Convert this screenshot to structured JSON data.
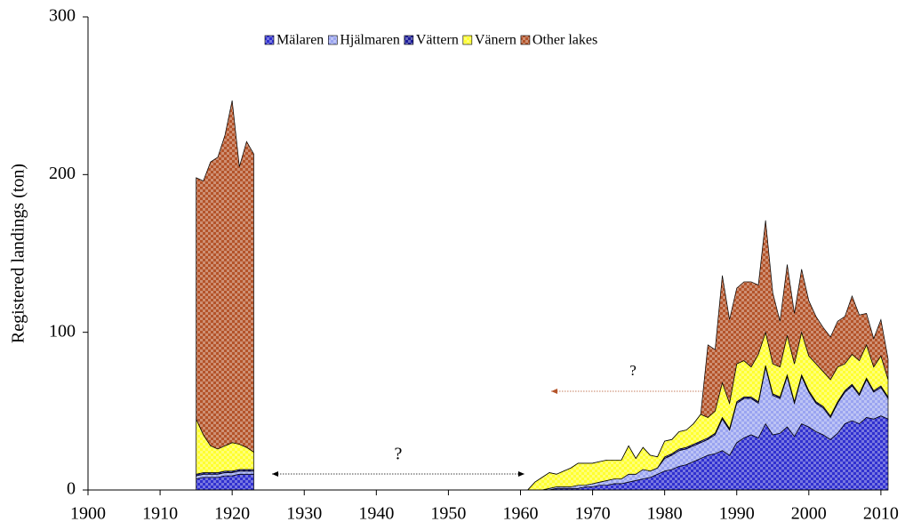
{
  "chart_data": {
    "type": "stacked_area",
    "y_label": "Registered landings (ton)",
    "x": [
      1915,
      1916,
      1917,
      1918,
      1919,
      1920,
      1921,
      1922,
      1923,
      1924,
      1961,
      1962,
      1963,
      1964,
      1965,
      1966,
      1967,
      1968,
      1969,
      1970,
      1971,
      1972,
      1973,
      1974,
      1975,
      1976,
      1977,
      1978,
      1979,
      1980,
      1981,
      1982,
      1983,
      1984,
      1985,
      1986,
      1987,
      1988,
      1989,
      1990,
      1991,
      1992,
      1993,
      1994,
      1995,
      1996,
      1997,
      1998,
      1999,
      2000,
      2001,
      2002,
      2003,
      2004,
      2005,
      2006,
      2007,
      2008,
      2009,
      2010,
      2011
    ],
    "series": [
      {
        "name": "Mälaren",
        "color": "#3030d0",
        "values": [
          7,
          8,
          8,
          8,
          9,
          9,
          10,
          10,
          10,
          null,
          0,
          0,
          0,
          0,
          1,
          1,
          1,
          1,
          2,
          2,
          3,
          3,
          4,
          4,
          5,
          6,
          7,
          8,
          10,
          12,
          13,
          15,
          16,
          18,
          20,
          22,
          23,
          25,
          22,
          30,
          33,
          35,
          33,
          42,
          35,
          36,
          40,
          34,
          42,
          40,
          37,
          35,
          32,
          36,
          42,
          44,
          42,
          46,
          45,
          47,
          45
        ]
      },
      {
        "name": "Hjälmaren",
        "color": "#9aa4f0",
        "values": [
          2,
          2,
          2,
          2,
          2,
          2,
          2,
          2,
          2,
          null,
          0,
          0,
          0,
          1,
          1,
          1,
          1,
          2,
          1,
          2,
          2,
          3,
          3,
          3,
          5,
          4,
          6,
          4,
          4,
          8,
          9,
          10,
          10,
          10,
          10,
          10,
          12,
          20,
          16,
          25,
          25,
          23,
          22,
          36,
          25,
          22,
          32,
          21,
          30,
          22,
          18,
          17,
          14,
          19,
          20,
          22,
          18,
          24,
          17,
          18,
          13
        ]
      },
      {
        "name": "Vättern",
        "color": "#1c1c9a",
        "values": [
          1,
          1,
          1,
          1,
          1,
          1,
          1,
          1,
          1,
          null,
          0,
          0,
          0,
          0,
          0,
          0,
          0,
          0,
          0,
          0,
          0,
          0,
          0,
          0,
          0,
          0,
          0,
          0,
          0,
          1,
          1,
          1,
          1,
          1,
          1,
          1,
          1,
          1,
          1,
          1,
          1,
          1,
          1,
          1,
          1,
          1,
          1,
          1,
          1,
          1,
          1,
          1,
          1,
          1,
          1,
          1,
          1,
          1,
          1,
          1,
          1
        ]
      },
      {
        "name": "Vänern",
        "color": "#ffff30",
        "values": [
          35,
          24,
          17,
          15,
          16,
          18,
          16,
          14,
          11,
          null,
          0,
          5,
          8,
          10,
          8,
          10,
          12,
          14,
          14,
          13,
          13,
          13,
          12,
          12,
          18,
          10,
          14,
          10,
          7,
          10,
          9,
          11,
          11,
          13,
          17,
          13,
          14,
          22,
          16,
          24,
          23,
          19,
          30,
          21,
          19,
          19,
          25,
          24,
          27,
          22,
          24,
          22,
          23,
          22,
          17,
          19,
          21,
          21,
          15,
          19,
          11
        ]
      },
      {
        "name": "Other lakes",
        "color": "#b4542a",
        "values": [
          153,
          161,
          180,
          185,
          197,
          217,
          176,
          194,
          189,
          null,
          0,
          0,
          0,
          0,
          0,
          0,
          0,
          0,
          0,
          0,
          0,
          0,
          0,
          0,
          0,
          0,
          0,
          0,
          0,
          0,
          0,
          0,
          0,
          0,
          0,
          46,
          39,
          68,
          53,
          48,
          50,
          54,
          44,
          71,
          45,
          29,
          45,
          32,
          40,
          35,
          30,
          28,
          27,
          29,
          30,
          37,
          29,
          20,
          18,
          23,
          13
        ]
      }
    ],
    "xlim": [
      1900,
      2011
    ],
    "ylim": [
      0,
      300
    ],
    "xticks": [
      1900,
      1910,
      1920,
      1930,
      1940,
      1950,
      1960,
      1970,
      1980,
      1990,
      2000,
      2010
    ],
    "yticks": [
      0,
      100,
      200,
      300
    ],
    "legend": "top",
    "annotations": [
      {
        "text": "?",
        "color": "#000000"
      },
      {
        "text": "?",
        "color": "#b4542a"
      }
    ]
  }
}
